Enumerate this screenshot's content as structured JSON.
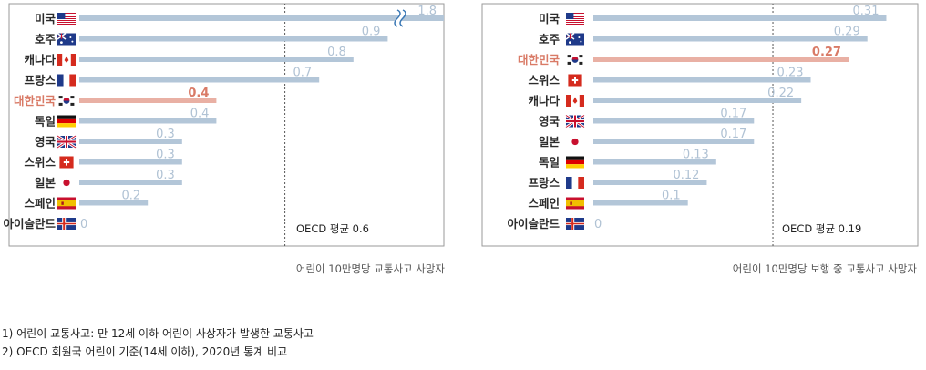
{
  "chart_data": [
    {
      "type": "bar",
      "orientation": "horizontal",
      "categories": [
        "미국",
        "호주",
        "캐나다",
        "프랑스",
        "대한민국",
        "독일",
        "영국",
        "스위스",
        "일본",
        "스페인",
        "아이슬란드"
      ],
      "flags": [
        "us",
        "au",
        "ca",
        "fr",
        "kr",
        "de",
        "gb",
        "ch",
        "jp",
        "es",
        "is"
      ],
      "values": [
        1.8,
        0.9,
        0.8,
        0.7,
        0.4,
        0.4,
        0.3,
        0.3,
        0.3,
        0.2,
        0
      ],
      "value_labels": [
        "1.8",
        "0.9",
        "0.8",
        "0.7",
        "0.4",
        "0.4",
        "0.3",
        "0.3",
        "0.3",
        "0.2",
        "0"
      ],
      "highlight": "대한민국",
      "axis_break": "미국",
      "xlim": [
        0,
        1.0
      ],
      "average": 0.6,
      "average_label": "OECD 평균 0.6",
      "caption": "어린이 10만명당 교통사고 사망자",
      "colors": {
        "bar": "#b3c6d8",
        "highlight": "#e9b0a4",
        "value": "#b0c2d4",
        "highlight_text": "#d97a66"
      }
    },
    {
      "type": "bar",
      "orientation": "horizontal",
      "categories": [
        "미국",
        "호주",
        "대한민국",
        "스위스",
        "캐나다",
        "영국",
        "일본",
        "독일",
        "프랑스",
        "스페인",
        "아이슬란드"
      ],
      "flags": [
        "us",
        "au",
        "kr",
        "ch",
        "ca",
        "gb",
        "jp",
        "de",
        "fr",
        "es",
        "is"
      ],
      "values": [
        0.31,
        0.29,
        0.27,
        0.23,
        0.22,
        0.17,
        0.17,
        0.13,
        0.12,
        0.1,
        0
      ],
      "value_labels": [
        "0.31",
        "0.29",
        "0.27",
        "0.23",
        "0.22",
        "0.17",
        "0.17",
        "0.13",
        "0.12",
        "0.1",
        "0"
      ],
      "highlight": "대한민국",
      "xlim": [
        0,
        0.31
      ],
      "average": 0.19,
      "average_label": "OECD 평균 0.19",
      "caption": "어린이 10만명당 보행 중 교통사고 사망자",
      "colors": {
        "bar": "#b3c6d8",
        "highlight": "#e9b0a4",
        "value": "#b0c2d4",
        "highlight_text": "#d97a66"
      }
    }
  ],
  "footnotes": [
    "1) 어린이 교통사고: 만 12세 이하 어린이 사상자가 발생한 교통사고",
    "2) OECD 회원국 어린이 기준(14세 이하), 2020년 통계 비교"
  ]
}
